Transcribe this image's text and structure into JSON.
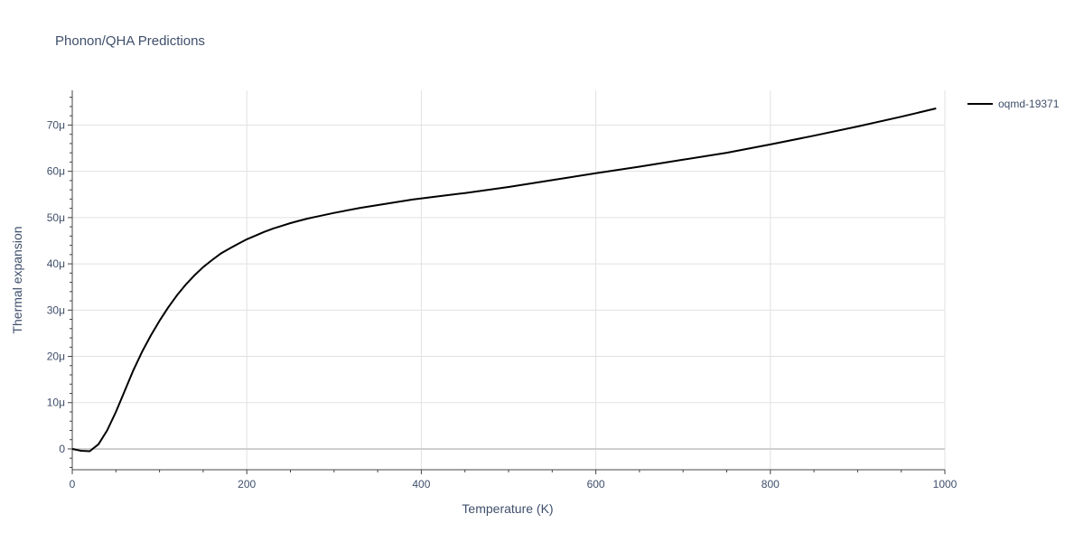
{
  "chart_data": {
    "type": "line",
    "title": "Phonon/QHA Predictions",
    "xlabel": "Temperature (K)",
    "ylabel": "Thermal expansion",
    "xlim": [
      0,
      1000
    ],
    "ylim": [
      -4.5,
      77.5
    ],
    "x_ticks": [
      0,
      200,
      400,
      600,
      800,
      1000
    ],
    "x_tick_labels": [
      "0",
      "200",
      "400",
      "600",
      "800",
      "1000"
    ],
    "y_ticks": [
      0,
      10,
      20,
      30,
      40,
      50,
      60,
      70
    ],
    "y_tick_labels": [
      "0",
      "10μ",
      "20μ",
      "30μ",
      "40μ",
      "50μ",
      "60μ",
      "70μ"
    ],
    "y_unit_note": "values in units of 1e-6 per K (μ)",
    "grid": true,
    "legend_position": "top-right",
    "series": [
      {
        "name": "oqmd-19371",
        "color": "#000000",
        "x": [
          0,
          10,
          20,
          30,
          40,
          50,
          60,
          70,
          80,
          90,
          100,
          110,
          120,
          130,
          140,
          150,
          160,
          170,
          180,
          190,
          200,
          210,
          220,
          230,
          240,
          250,
          260,
          270,
          280,
          300,
          330,
          360,
          390,
          420,
          450,
          500,
          550,
          600,
          650,
          700,
          750,
          800,
          850,
          900,
          950,
          990
        ],
        "y": [
          0,
          -0.4,
          -0.5,
          1.0,
          4.0,
          8.0,
          12.5,
          17.0,
          21.0,
          24.5,
          27.7,
          30.6,
          33.2,
          35.5,
          37.5,
          39.3,
          40.8,
          42.2,
          43.3,
          44.3,
          45.3,
          46.1,
          46.9,
          47.6,
          48.2,
          48.8,
          49.3,
          49.8,
          50.2,
          51.0,
          52.1,
          53.0,
          53.9,
          54.6,
          55.3,
          56.6,
          58.1,
          59.6,
          61.0,
          62.5,
          64.0,
          65.8,
          67.7,
          69.7,
          71.8,
          73.6
        ]
      }
    ]
  }
}
